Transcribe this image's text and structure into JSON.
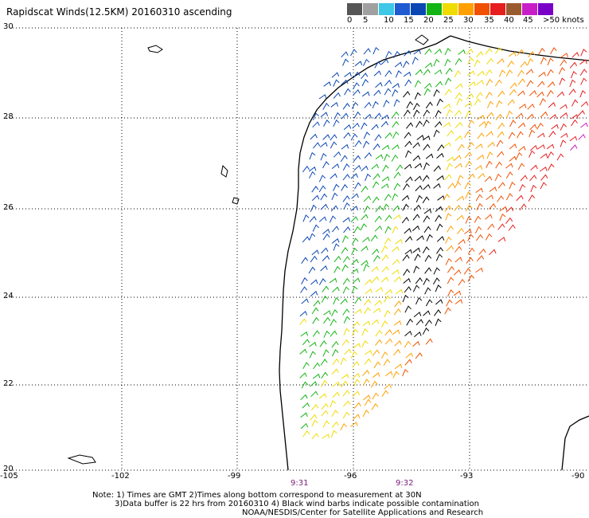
{
  "title": "Rapidscat Winds(12.5KM) 20160310 ascending",
  "colorbar": {
    "labels": [
      "0",
      "5",
      "10",
      "15",
      "20",
      "25",
      "30",
      "35",
      "40",
      "45",
      ">50 knots"
    ],
    "colors": [
      "#555555",
      "#a0a0a0",
      "#3cc8e6",
      "#1e5ad2",
      "#0a46b4",
      "#14b414",
      "#f0dc00",
      "#ffa000",
      "#f05000",
      "#e61e1e",
      "#9a5a30",
      "#c81ec8",
      "#7a00c8"
    ]
  },
  "axes": {
    "lat_labels": [
      "30",
      "28",
      "26",
      "24",
      "22",
      "20"
    ],
    "lon_labels": [
      "-105",
      "-102",
      "-99",
      "-96",
      "-93",
      "-90"
    ]
  },
  "time_labels": [
    "9:31",
    "9:32"
  ],
  "notes": [
    "Note: 1) Times are GMT 2)Times along bottom correspond to measurement at 30N",
    "3)Data buffer is 22 hrs from 20160310 4) Black wind barbs indicate possible contamination",
    "NOAA/NESDIS/Center for Satellite Applications and Research"
  ]
}
